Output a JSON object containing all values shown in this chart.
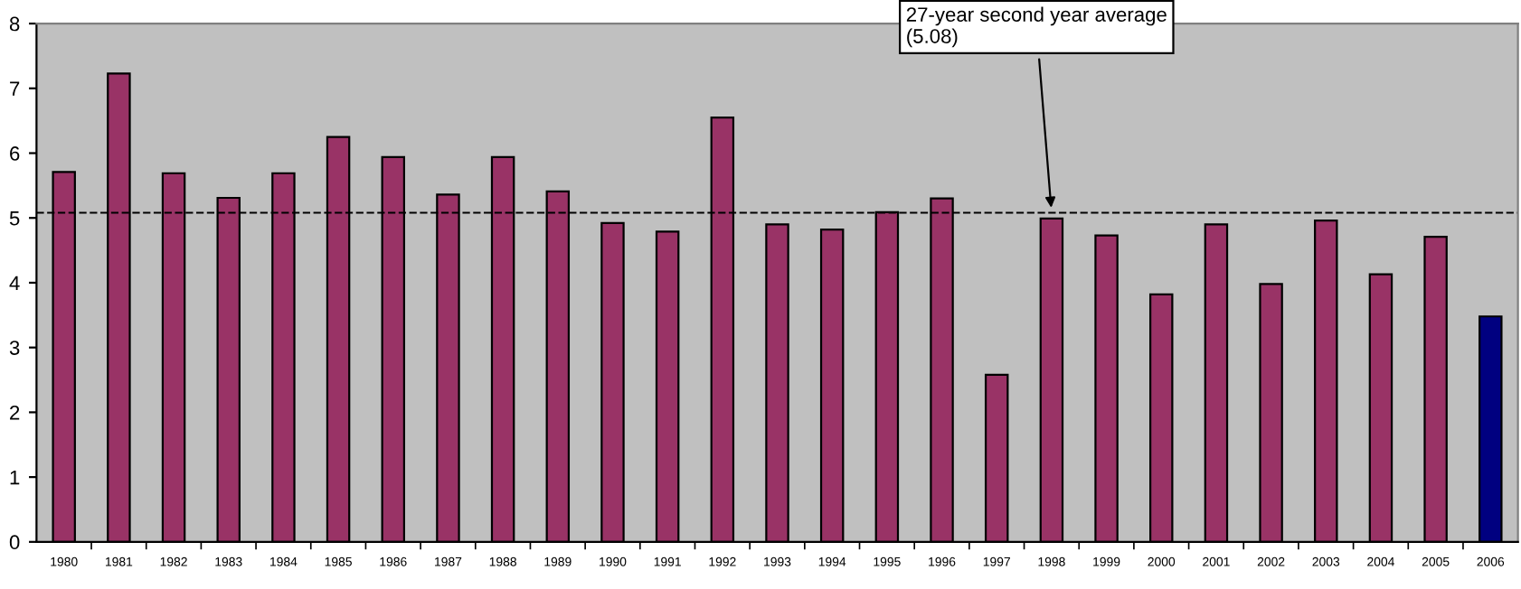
{
  "chart_data": {
    "type": "bar",
    "categories": [
      "1980",
      "1981",
      "1982",
      "1983",
      "1984",
      "1985",
      "1986",
      "1987",
      "1988",
      "1989",
      "1990",
      "1991",
      "1992",
      "1993",
      "1994",
      "1995",
      "1996",
      "1997",
      "1998",
      "1999",
      "2000",
      "2001",
      "2002",
      "2003",
      "2004",
      "2005",
      "2006"
    ],
    "values": [
      5.71,
      7.23,
      5.69,
      5.31,
      5.69,
      6.25,
      5.94,
      5.36,
      5.94,
      5.41,
      4.92,
      4.79,
      6.55,
      4.9,
      4.82,
      5.09,
      5.3,
      2.58,
      4.99,
      4.73,
      3.82,
      4.9,
      3.98,
      4.96,
      4.13,
      4.71,
      3.48
    ],
    "colors": [
      "#993366",
      "#993366",
      "#993366",
      "#993366",
      "#993366",
      "#993366",
      "#993366",
      "#993366",
      "#993366",
      "#993366",
      "#993366",
      "#993366",
      "#993366",
      "#993366",
      "#993366",
      "#993366",
      "#993366",
      "#993366",
      "#993366",
      "#993366",
      "#993366",
      "#993366",
      "#993366",
      "#993366",
      "#993366",
      "#993366",
      "#000080"
    ],
    "ylim": [
      0,
      8
    ],
    "yticks": [
      0,
      1,
      2,
      3,
      4,
      5,
      6,
      7,
      8
    ],
    "ref_lines": [
      {
        "axis": "y",
        "value": 5.08,
        "color": "#000000",
        "line_style": "dashed"
      }
    ],
    "annotations": [
      {
        "text": "27-year second year average\n(5.08)",
        "x": "1998",
        "y": 5.08
      }
    ],
    "grid": false,
    "legend": false
  }
}
